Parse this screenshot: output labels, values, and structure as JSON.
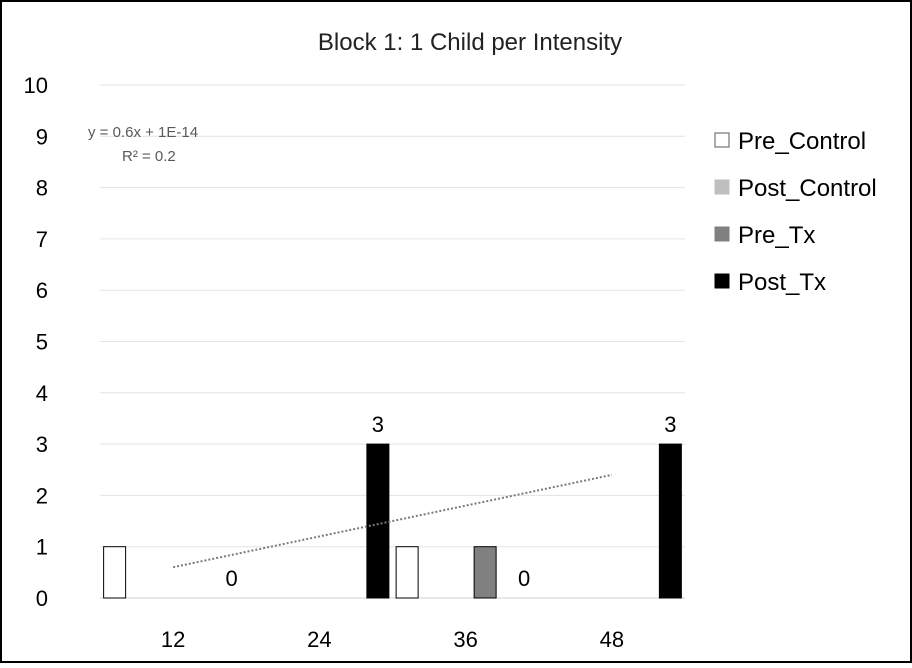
{
  "chart_data": {
    "type": "bar",
    "title": "Block 1: 1 Child per Intensity",
    "xlabel": "",
    "ylabel": "",
    "categories": [
      "12",
      "24",
      "36",
      "48"
    ],
    "ylim": [
      0,
      10
    ],
    "yticks": [
      "0",
      "1",
      "2",
      "3",
      "4",
      "5",
      "6",
      "7",
      "8",
      "9",
      "10"
    ],
    "grid": true,
    "legend_position": "right",
    "series": [
      {
        "name": "Pre_Control",
        "color": "#ffffff",
        "values": [
          1,
          null,
          1,
          null
        ]
      },
      {
        "name": "Post_Control",
        "color": "#bfbfbf",
        "values": [
          null,
          null,
          null,
          null
        ]
      },
      {
        "name": "Pre_Tx",
        "color": "#808080",
        "values": [
          null,
          null,
          1,
          null
        ]
      },
      {
        "name": "Post_Tx",
        "color": "#000000",
        "values": [
          0,
          3,
          0,
          3
        ]
      }
    ],
    "data_labels": [
      {
        "series": "Post_Tx",
        "category": "12",
        "text": "0"
      },
      {
        "series": "Post_Tx",
        "category": "24",
        "text": "3"
      },
      {
        "series": "Post_Tx",
        "category": "36",
        "text": "0"
      },
      {
        "series": "Post_Tx",
        "category": "48",
        "text": "3"
      }
    ],
    "trendline": {
      "style": "dotted",
      "equation": "y = 0.6x + 1E-14",
      "r_squared": "R² = 0.2",
      "start": {
        "category_index": 0,
        "value": 0.6
      },
      "end": {
        "category_index": 3,
        "value": 2.4
      }
    }
  }
}
